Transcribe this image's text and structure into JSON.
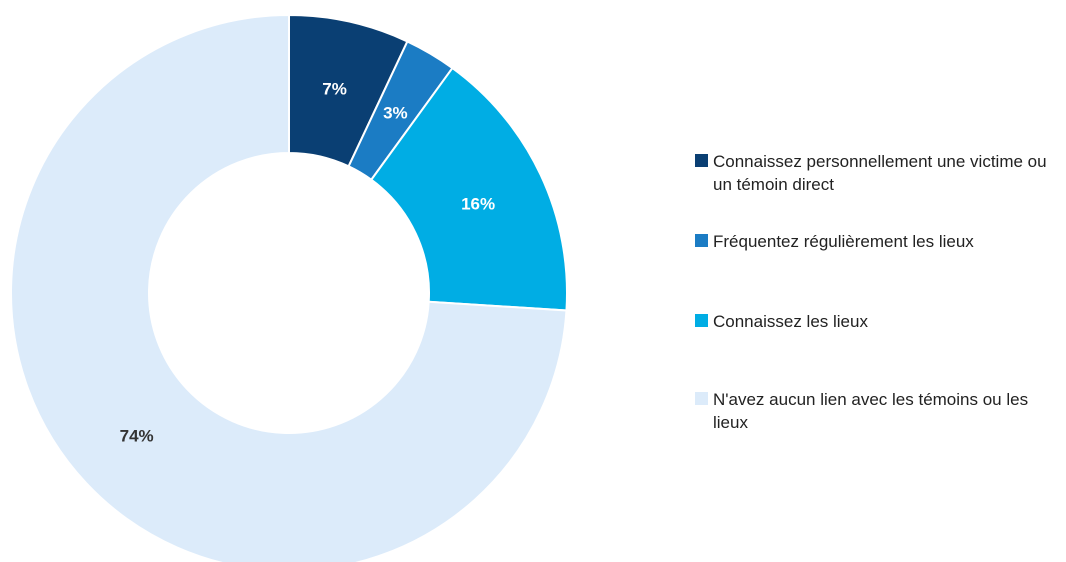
{
  "chart_data": {
    "type": "pie",
    "variant": "donut",
    "title": "",
    "start_angle_deg": 0,
    "direction": "clockwise",
    "slices": [
      {
        "label": "Connaissez personnellement une victime ou un témoin direct",
        "value": 7,
        "display": "7%",
        "color": "#0a3f73",
        "label_color": "#ffffff"
      },
      {
        "label": "Fréquentez régulièrement les lieux",
        "value": 3,
        "display": "3%",
        "color": "#1b7cc4",
        "label_color": "#ffffff"
      },
      {
        "label": "Connaissez les lieux",
        "value": 16,
        "display": "16%",
        "color": "#00ade4",
        "label_color": "#ffffff"
      },
      {
        "label": "N'avez aucun lien avec les témoins ou les lieux",
        "value": 74,
        "display": "74%",
        "color": "#dcebfa",
        "label_color": "#333333"
      }
    ],
    "legend_position": "right"
  }
}
